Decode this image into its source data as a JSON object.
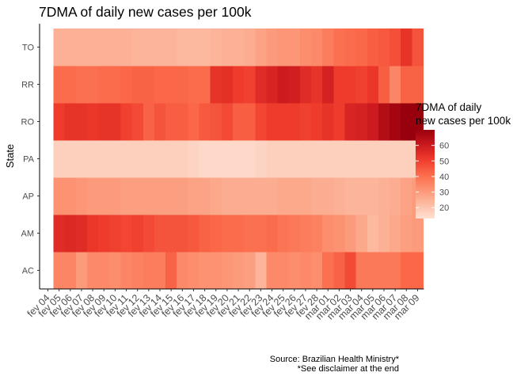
{
  "chart_data": {
    "type": "heatmap",
    "title": "7DMA of daily new cases per 100k",
    "xlabel": "",
    "ylabel": "State",
    "states": [
      "AC",
      "AM",
      "AP",
      "PA",
      "RO",
      "RR",
      "TO"
    ],
    "dates": [
      "fev 04",
      "fev 05",
      "fev 06",
      "fev 07",
      "fev 08",
      "fev 09",
      "fev 10",
      "fev 11",
      "fev 12",
      "fev 13",
      "fev 14",
      "fev 15",
      "fev 16",
      "fev 17",
      "fev 18",
      "fev 19",
      "fev 20",
      "fev 21",
      "fev 22",
      "fev 23",
      "fev 24",
      "fev 25",
      "fev 26",
      "fev 27",
      "fev 28",
      "mar 01",
      "mar 02",
      "mar 03",
      "mar 04",
      "mar 05",
      "mar 06",
      "mar 07",
      "mar 08",
      "mar 09"
    ],
    "data_start": "fev 05",
    "values": {
      "AC": [
        35,
        35,
        30,
        34,
        34,
        33,
        35,
        36,
        37,
        37,
        43,
        34,
        33,
        32,
        32,
        31,
        30,
        29,
        24,
        34,
        34,
        33,
        34,
        33,
        40,
        43,
        48,
        38,
        38,
        38,
        38,
        42,
        42
      ],
      "AM": [
        55,
        56,
        55,
        52,
        51,
        50,
        49,
        50,
        48,
        46,
        46,
        46,
        45,
        43,
        42,
        41,
        41,
        40,
        40,
        41,
        39,
        38,
        37,
        36,
        33,
        32,
        30,
        27,
        23,
        25,
        27,
        29,
        30
      ],
      "AP": [
        32,
        32,
        31,
        30,
        30,
        30,
        29,
        29,
        29,
        29,
        29,
        29,
        28,
        28,
        27,
        26,
        26,
        26,
        26,
        26,
        27,
        27,
        27,
        26,
        26,
        25,
        24,
        24,
        24,
        25,
        26,
        28,
        30
      ],
      "PA": [
        17,
        17,
        17,
        17,
        17,
        17,
        17,
        17,
        17,
        17,
        17,
        17,
        16,
        15,
        15,
        15,
        15,
        15,
        16,
        17,
        17,
        17,
        17,
        17,
        17,
        17,
        17,
        17,
        17,
        17,
        17,
        17,
        17
      ],
      "RO": [
        51,
        53,
        53,
        52,
        53,
        53,
        50,
        48,
        43,
        46,
        44,
        44,
        42,
        45,
        46,
        48,
        44,
        44,
        49,
        51,
        51,
        51,
        50,
        51,
        53,
        51,
        57,
        58,
        60,
        65,
        68,
        70,
        70
      ],
      "RR": [
        41,
        41,
        40,
        40,
        41,
        41,
        42,
        43,
        43,
        42,
        42,
        42,
        41,
        41,
        53,
        54,
        51,
        50,
        55,
        57,
        60,
        59,
        55,
        53,
        58,
        51,
        51,
        50,
        52,
        44,
        35,
        43,
        43
      ],
      "TO": [
        25,
        25,
        25,
        25,
        25,
        25,
        25,
        24,
        24,
        24,
        24,
        23,
        23,
        23,
        24,
        25,
        25,
        26,
        28,
        30,
        31,
        31,
        33,
        34,
        37,
        40,
        41,
        42,
        44,
        45,
        47,
        53,
        46
      ]
    },
    "scale": {
      "min": 13,
      "max": 70,
      "colors": [
        "#fee0d2",
        "#fcbba1",
        "#fc9272",
        "#fb6a4a",
        "#ef3b2c",
        "#cb181d",
        "#99000d"
      ]
    },
    "legend": {
      "title_line1": "7DMA of daily",
      "title_line2": "new cases per 100k",
      "placement": "right",
      "ticks": [
        20,
        30,
        40,
        50,
        60
      ]
    },
    "grid": false
  },
  "caption": {
    "line1": "Source: Brazilian Health Ministry*",
    "line2": "*See disclaimer at the end"
  }
}
